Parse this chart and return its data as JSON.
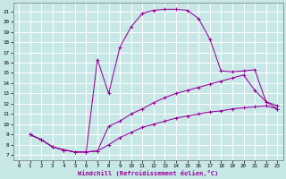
{
  "xlabel": "Windchill (Refroidissement éolien,°C)",
  "bg_color": "#c8e8e8",
  "grid_color": "#ffffff",
  "line_color": "#990099",
  "xlim": [
    -0.5,
    23.5
  ],
  "ylim": [
    6.5,
    21.8
  ],
  "xticks": [
    0,
    1,
    2,
    3,
    4,
    5,
    6,
    7,
    8,
    9,
    10,
    11,
    12,
    13,
    14,
    15,
    16,
    17,
    18,
    19,
    20,
    21,
    22,
    23
  ],
  "yticks": [
    7,
    8,
    9,
    10,
    11,
    12,
    13,
    14,
    15,
    16,
    17,
    18,
    19,
    20,
    21
  ],
  "curve_top_x": [
    1,
    2,
    3,
    4,
    5,
    6,
    7,
    8,
    9,
    10,
    11,
    12,
    13,
    14,
    15,
    16,
    17,
    18,
    19,
    20,
    21,
    22,
    23
  ],
  "curve_top_y": [
    9,
    8.5,
    7.8,
    7.5,
    7.3,
    7.3,
    16.3,
    13.0,
    17.5,
    19.5,
    20.8,
    21.1,
    21.2,
    21.2,
    21.1,
    20.3,
    18.3,
    15.2,
    15.1,
    15.2,
    15.3,
    12.2,
    11.5
  ],
  "curve_mid_x": [
    1,
    2,
    3,
    4,
    5,
    6,
    7,
    8,
    9,
    10,
    11,
    12,
    13,
    14,
    15,
    16,
    17,
    18,
    19,
    20,
    21,
    22,
    23
  ],
  "curve_mid_y": [
    9,
    8.5,
    7.8,
    7.5,
    7.3,
    7.3,
    7.4,
    9.8,
    10.3,
    11.0,
    11.5,
    12.1,
    12.6,
    13.0,
    13.3,
    13.6,
    13.9,
    14.2,
    14.5,
    14.8,
    13.3,
    12.2,
    11.8
  ],
  "curve_bot_x": [
    1,
    2,
    3,
    4,
    5,
    6,
    7,
    8,
    9,
    10,
    11,
    12,
    13,
    14,
    15,
    16,
    17,
    18,
    19,
    20,
    21,
    22,
    23
  ],
  "curve_bot_y": [
    9,
    8.5,
    7.8,
    7.5,
    7.3,
    7.3,
    7.4,
    8.0,
    8.7,
    9.2,
    9.7,
    10.0,
    10.3,
    10.6,
    10.8,
    11.0,
    11.2,
    11.3,
    11.5,
    11.6,
    11.7,
    11.8,
    11.5
  ]
}
